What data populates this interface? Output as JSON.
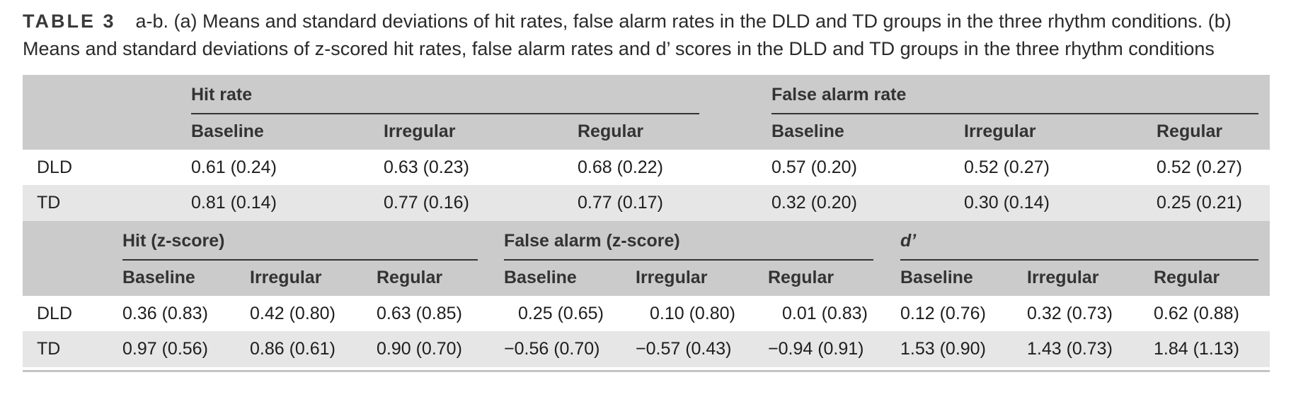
{
  "caption": {
    "label": "TABLE 3",
    "text": "a-b. (a) Means and standard deviations of hit rates, false alarm rates in the DLD and TD groups in the three rhythm conditions. (b) Means and standard deviations of z-scored hit rates, false alarm rates and d’ scores in the DLD and TD groups in the three rhythm conditions"
  },
  "part_a": {
    "groups": [
      "Hit rate",
      "False alarm rate"
    ],
    "columns": [
      "Baseline",
      "Irregular",
      "Regular",
      "Baseline",
      "Irregular",
      "Regular"
    ],
    "rows": [
      {
        "label": "DLD",
        "values": [
          "0.61 (0.24)",
          "0.63 (0.23)",
          "0.68 (0.22)",
          "0.57 (0.20)",
          "0.52 (0.27)",
          "0.52 (0.27)"
        ]
      },
      {
        "label": "TD",
        "values": [
          "0.81 (0.14)",
          "0.77 (0.16)",
          "0.77 (0.17)",
          "0.32 (0.20)",
          "0.30 (0.14)",
          "0.25 (0.21)"
        ]
      }
    ]
  },
  "part_b": {
    "groups": [
      "Hit (z-score)",
      "False alarm (z-score)",
      "d’"
    ],
    "columns": [
      "Baseline",
      "Irregular",
      "Regular",
      "Baseline",
      "Irregular",
      "Regular",
      "Baseline",
      "Irregular",
      "Regular"
    ],
    "rows": [
      {
        "label": "DLD",
        "values": [
          "0.36 (0.83)",
          "0.42 (0.80)",
          "0.63 (0.85)",
          "0.25 (0.65)",
          "0.10 (0.80)",
          "0.01 (0.83)",
          "0.12 (0.76)",
          "0.32 (0.73)",
          "0.62 (0.88)"
        ]
      },
      {
        "label": "TD",
        "values": [
          "0.97 (0.56)",
          "0.86 (0.61)",
          "0.90 (0.70)",
          "−0.56 (0.70)",
          "−0.57 (0.43)",
          "−0.94 (0.91)",
          "1.53 (0.90)",
          "1.43 (0.73)",
          "1.84 (1.13)"
        ]
      }
    ]
  }
}
